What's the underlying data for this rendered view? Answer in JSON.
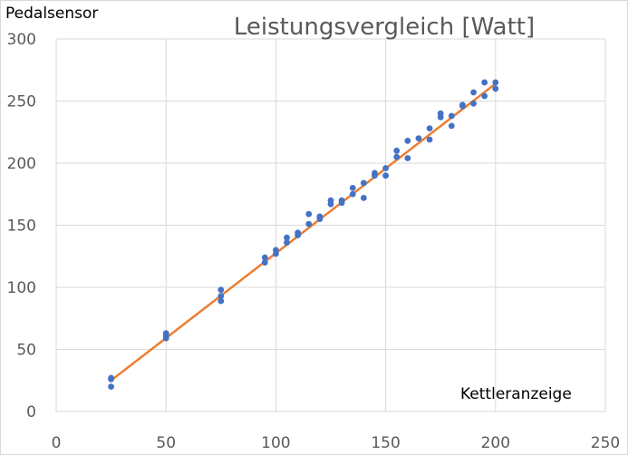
{
  "chart_data": {
    "type": "scatter",
    "title": "Leistungsvergleich [Watt]",
    "xlabel": "Kettleranzeige",
    "ylabel": "Pedalsensor",
    "xlim": [
      0,
      250
    ],
    "ylim": [
      0,
      300
    ],
    "x_ticks": [
      0,
      50,
      100,
      150,
      200,
      250
    ],
    "y_ticks": [
      0,
      50,
      100,
      150,
      200,
      250,
      300
    ],
    "grid": true,
    "colors": {
      "points": "#4472C4",
      "trendline": "#ED7D31",
      "grid": "#D9D9D9"
    },
    "series": [
      {
        "points": [
          [
            25,
            20
          ],
          [
            25,
            26
          ],
          [
            25,
            27
          ],
          [
            50,
            59
          ],
          [
            50,
            61
          ],
          [
            50,
            63
          ],
          [
            75,
            89
          ],
          [
            75,
            93
          ],
          [
            75,
            98
          ],
          [
            95,
            120
          ],
          [
            95,
            124
          ],
          [
            100,
            127
          ],
          [
            100,
            130
          ],
          [
            105,
            136
          ],
          [
            105,
            140
          ],
          [
            110,
            142
          ],
          [
            110,
            144
          ],
          [
            115,
            151
          ],
          [
            115,
            159
          ],
          [
            120,
            155
          ],
          [
            120,
            157
          ],
          [
            125,
            167
          ],
          [
            125,
            170
          ],
          [
            130,
            168
          ],
          [
            130,
            170
          ],
          [
            135,
            175
          ],
          [
            135,
            180
          ],
          [
            140,
            172
          ],
          [
            140,
            184
          ],
          [
            145,
            190
          ],
          [
            145,
            192
          ],
          [
            150,
            190
          ],
          [
            150,
            196
          ],
          [
            155,
            205
          ],
          [
            155,
            210
          ],
          [
            160,
            204
          ],
          [
            160,
            218
          ],
          [
            165,
            220
          ],
          [
            170,
            219
          ],
          [
            170,
            228
          ],
          [
            175,
            237
          ],
          [
            175,
            240
          ],
          [
            180,
            230
          ],
          [
            180,
            238
          ],
          [
            185,
            246
          ],
          [
            185,
            247
          ],
          [
            190,
            248
          ],
          [
            190,
            257
          ],
          [
            195,
            254
          ],
          [
            195,
            265
          ],
          [
            200,
            260
          ],
          [
            200,
            265
          ]
        ]
      }
    ],
    "trendline": {
      "type": "linear",
      "x": [
        25,
        200
      ],
      "y": [
        25,
        264
      ]
    }
  }
}
